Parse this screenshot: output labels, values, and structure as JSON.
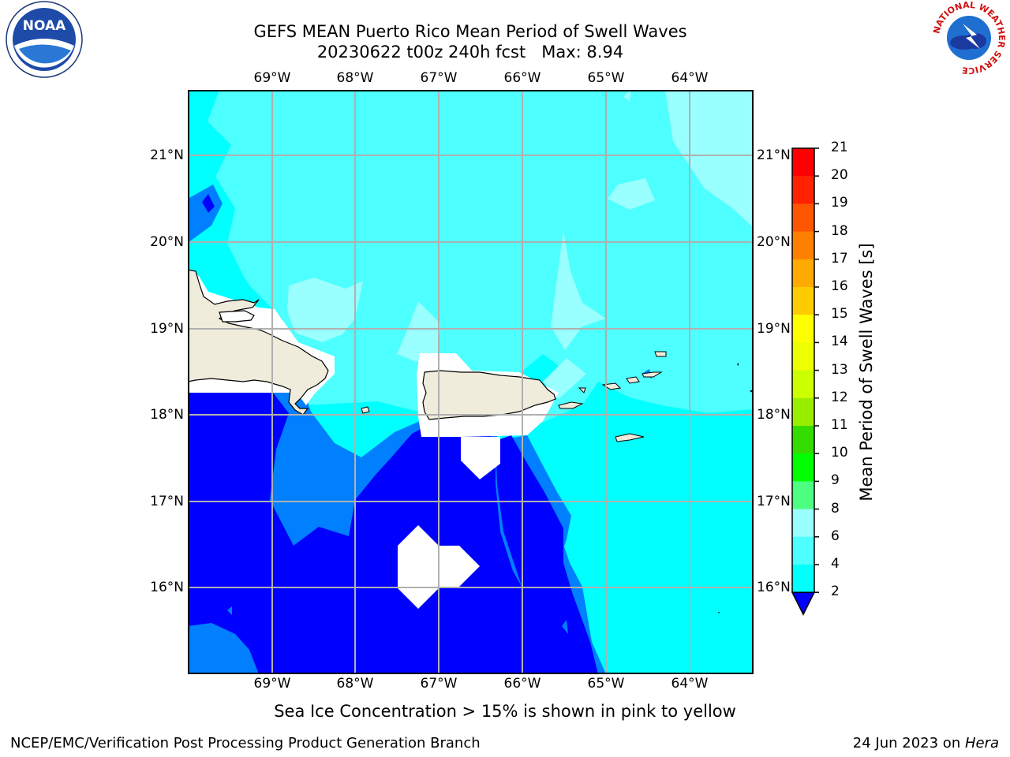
{
  "header": {
    "title_line1": "GEFS MEAN Puerto Rico Mean Period of Swell Waves",
    "title_line2": "20230622 t00z 240h fcst   Max: 8.94"
  },
  "logos": {
    "left": {
      "name": "noaa-logo",
      "text": "NOAA"
    },
    "right": {
      "name": "national-weather-service-logo",
      "ring_text": "NATIONAL WEATHER SERVICE"
    }
  },
  "map": {
    "lon_labels_top": [
      "69°W",
      "68°W",
      "67°W",
      "66°W",
      "65°W",
      "64°W"
    ],
    "lon_labels_bottom": [
      "69°W",
      "68°W",
      "67°W",
      "66°W",
      "65°W",
      "64°W"
    ],
    "lat_labels_left": [
      "21°N",
      "20°N",
      "19°N",
      "18°N",
      "17°N",
      "16°N"
    ],
    "lat_labels_right": [
      "21°N",
      "20°N",
      "19°N",
      "18°N",
      "17°N",
      "16°N"
    ],
    "colors": {
      "land": "#efecdc",
      "grid": "#b0b0b0",
      "coast": "#000000"
    }
  },
  "colorbar": {
    "label": "Mean Period of Swell Waves [s]",
    "ticks": [
      "2",
      "4",
      "6",
      "8",
      "9",
      "10",
      "11",
      "12",
      "13",
      "14",
      "15",
      "16",
      "17",
      "18",
      "19",
      "20",
      "21"
    ],
    "colors": [
      "#0000ff",
      "#0080ff",
      "#00ffff",
      "#4dffff",
      "#99ffff",
      "#4dff80",
      "#00ff00",
      "#33dd00",
      "#99ee00",
      "#ccff00",
      "#eeff00",
      "#ffff00",
      "#ffcc00",
      "#ffaa00",
      "#ff8000",
      "#ff5500",
      "#ff2200",
      "#ff0000"
    ]
  },
  "notes": {
    "sea_ice": "Sea Ice Concentration > 15% is shown in pink to yellow"
  },
  "footer": {
    "left": "NCEP/EMC/Verification Post Processing Product Generation Branch",
    "right_prefix": "24 Jun 2023 on ",
    "right_host": "Hera"
  }
}
